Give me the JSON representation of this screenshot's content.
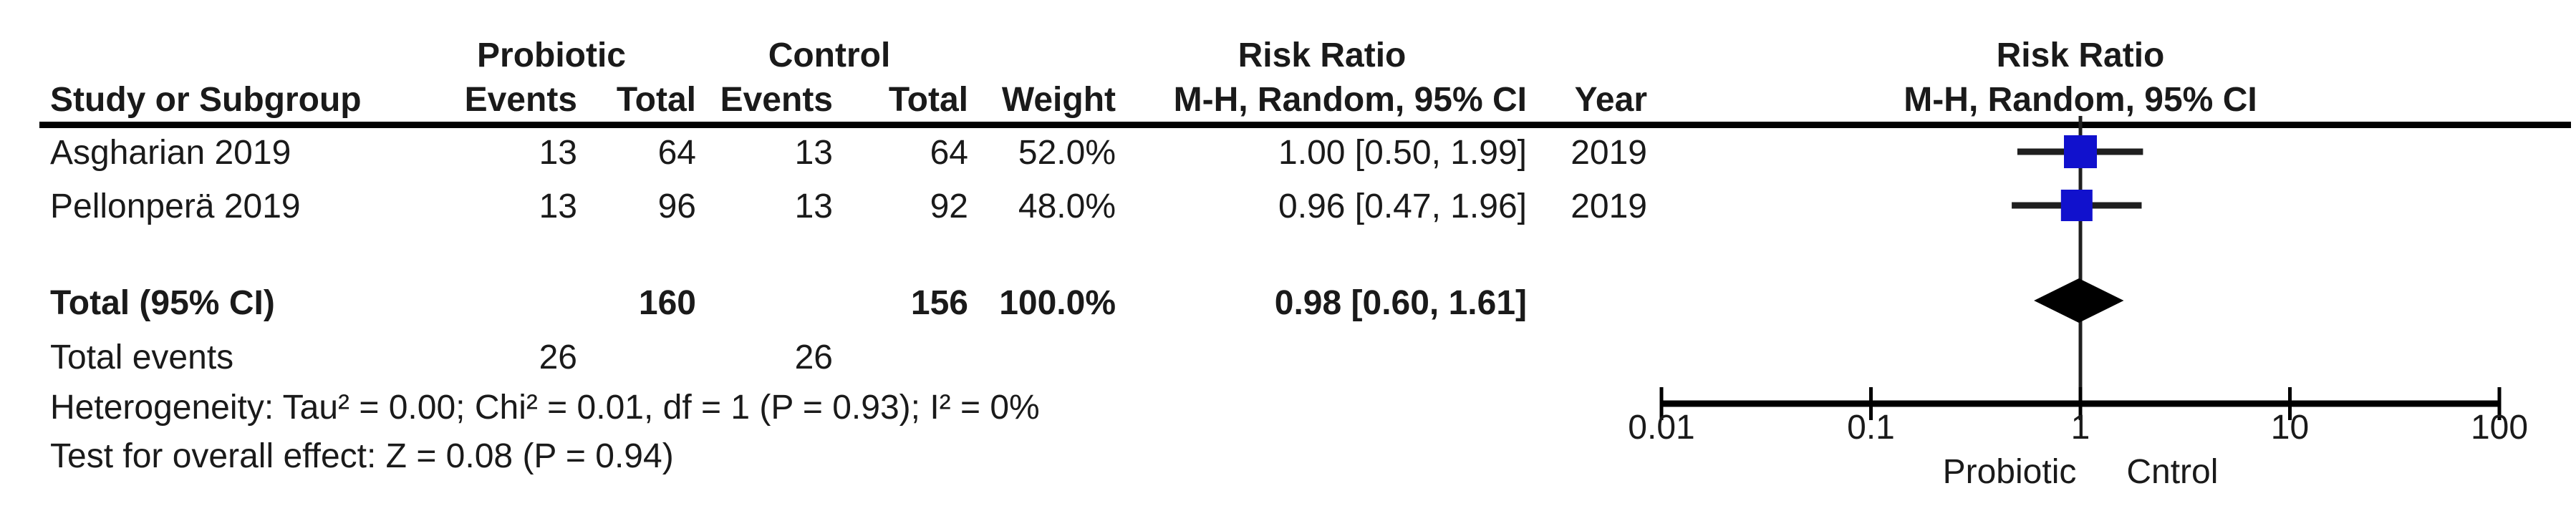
{
  "table": {
    "header": {
      "group1": "Probiotic",
      "group2": "Control",
      "risk_ratio_col": "Risk Ratio",
      "study": "Study or Subgroup",
      "events": "Events",
      "total": "Total",
      "events2": "Events",
      "total2": "Total",
      "weight": "Weight",
      "method": "M-H, Random, 95% CI",
      "year": "Year"
    },
    "rows": [
      {
        "study": "Asgharian 2019",
        "events1": "13",
        "total1": "64",
        "events2": "13",
        "total2": "64",
        "weight": "52.0%",
        "rr": "1.00 [0.50, 1.99]",
        "year": "2019"
      },
      {
        "study": "Pellonperä 2019",
        "events1": "13",
        "total1": "96",
        "events2": "13",
        "total2": "92",
        "weight": "48.0%",
        "rr": "0.96 [0.47, 1.96]",
        "year": "2019"
      }
    ],
    "total_row": {
      "label": "Total (95% CI)",
      "total1": "160",
      "total2": "156",
      "weight": "100.0%",
      "rr": "0.98 [0.60, 1.61]"
    },
    "total_events": {
      "label": "Total events",
      "events1": "26",
      "events2": "26"
    },
    "heterogeneity": "Heterogeneity: Tau² = 0.00; Chi² = 0.01, df = 1 (P = 0.93); I² = 0%",
    "overall_effect": "Test for overall effect: Z = 0.08 (P = 0.94)"
  },
  "plot": {
    "header_line1": "Risk Ratio",
    "header_line2": "M-H, Random, 95% CI"
  },
  "colors": {
    "square_blue": "#1111CD",
    "whisker_gray": "#1f1f1f",
    "black": "#000000"
  },
  "chart_data": {
    "type": "forest",
    "effect_measure": "Risk Ratio",
    "model": "M-H, Random, 95% CI",
    "x_scale": "log",
    "x_ticks": [
      0.01,
      0.1,
      1,
      10,
      100
    ],
    "x_tick_labels": [
      "0.01",
      "0.1",
      "1",
      "10",
      "100"
    ],
    "axis_label_left": "Probiotic",
    "axis_label_right": "Cntrol",
    "studies": [
      {
        "name": "Asgharian 2019",
        "events_treat": 13,
        "total_treat": 64,
        "events_ctrl": 13,
        "total_ctrl": 64,
        "weight_pct": 52.0,
        "rr": 1.0,
        "ci_low": 0.5,
        "ci_high": 1.99,
        "year": 2019
      },
      {
        "name": "Pellonperä 2019",
        "events_treat": 13,
        "total_treat": 96,
        "events_ctrl": 13,
        "total_ctrl": 92,
        "weight_pct": 48.0,
        "rr": 0.96,
        "ci_low": 0.47,
        "ci_high": 1.96,
        "year": 2019
      }
    ],
    "total": {
      "label": "Total (95% CI)",
      "total_treat": 160,
      "total_ctrl": 156,
      "weight_pct": 100.0,
      "rr": 0.98,
      "ci_low": 0.6,
      "ci_high": 1.61,
      "total_events_treat": 26,
      "total_events_ctrl": 26,
      "heterogeneity": {
        "tau2": 0.0,
        "chi2": 0.01,
        "df": 1,
        "p": 0.93,
        "i2_pct": 0
      },
      "overall_effect": {
        "z": 0.08,
        "p": 0.94
      }
    }
  }
}
